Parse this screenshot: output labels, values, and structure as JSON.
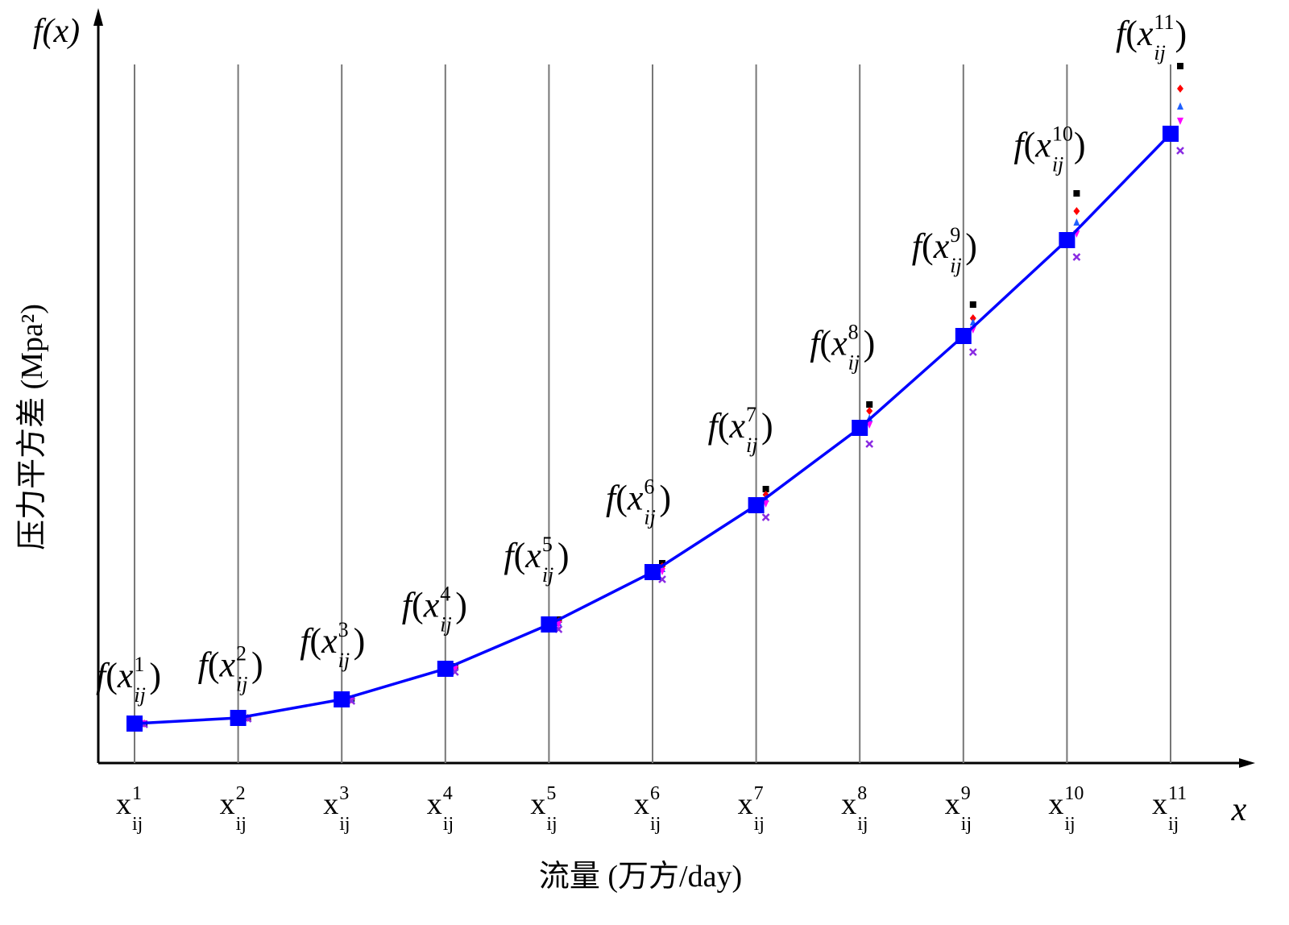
{
  "chart_data": {
    "type": "line",
    "y_axis_end_label": "f(x)",
    "x_axis_end_label": "x",
    "y_label": "压力平方差 (Mpa²)",
    "x_label": "流量 (万方/day)",
    "x_tick_base": "x",
    "x_tick_sub": "ij",
    "point_label": {
      "func": "f",
      "open": "(",
      "var": "x",
      "sub": "ij",
      "close": ")"
    },
    "categories": [
      "1",
      "2",
      "3",
      "4",
      "5",
      "6",
      "7",
      "8",
      "9",
      "10",
      "11"
    ],
    "ylim": [
      0,
      929
    ],
    "series": [
      {
        "color": "#000000",
        "marker": "square",
        "values": [
          49,
          56,
          80,
          120,
          178,
          248,
          340,
          445,
          569,
          707,
          865
        ]
      },
      {
        "color": "#ff0000",
        "marker": "diamond",
        "values": [
          49,
          56,
          79,
          119,
          176,
          244,
          333,
          437,
          552,
          685,
          837
        ]
      },
      {
        "color": "#1f5fff",
        "marker": "triangle-up",
        "values": [
          49,
          56,
          79,
          118,
          174,
          241,
          328,
          428,
          547,
          671,
          815
        ]
      },
      {
        "color": "#ff00ff",
        "marker": "triangle-down",
        "values": [
          49,
          56,
          79,
          117,
          172,
          238,
          322,
          420,
          538,
          657,
          797
        ]
      },
      {
        "color": "#8a2be2",
        "marker": "cross",
        "values": [
          48,
          55,
          77,
          113,
          166,
          228,
          305,
          396,
          510,
          628,
          760
        ]
      },
      {
        "color": "#0000ff",
        "marker": "big-square",
        "line": true,
        "values": [
          49,
          56,
          79,
          117,
          172,
          237,
          320,
          416,
          530,
          649,
          781
        ]
      }
    ]
  }
}
